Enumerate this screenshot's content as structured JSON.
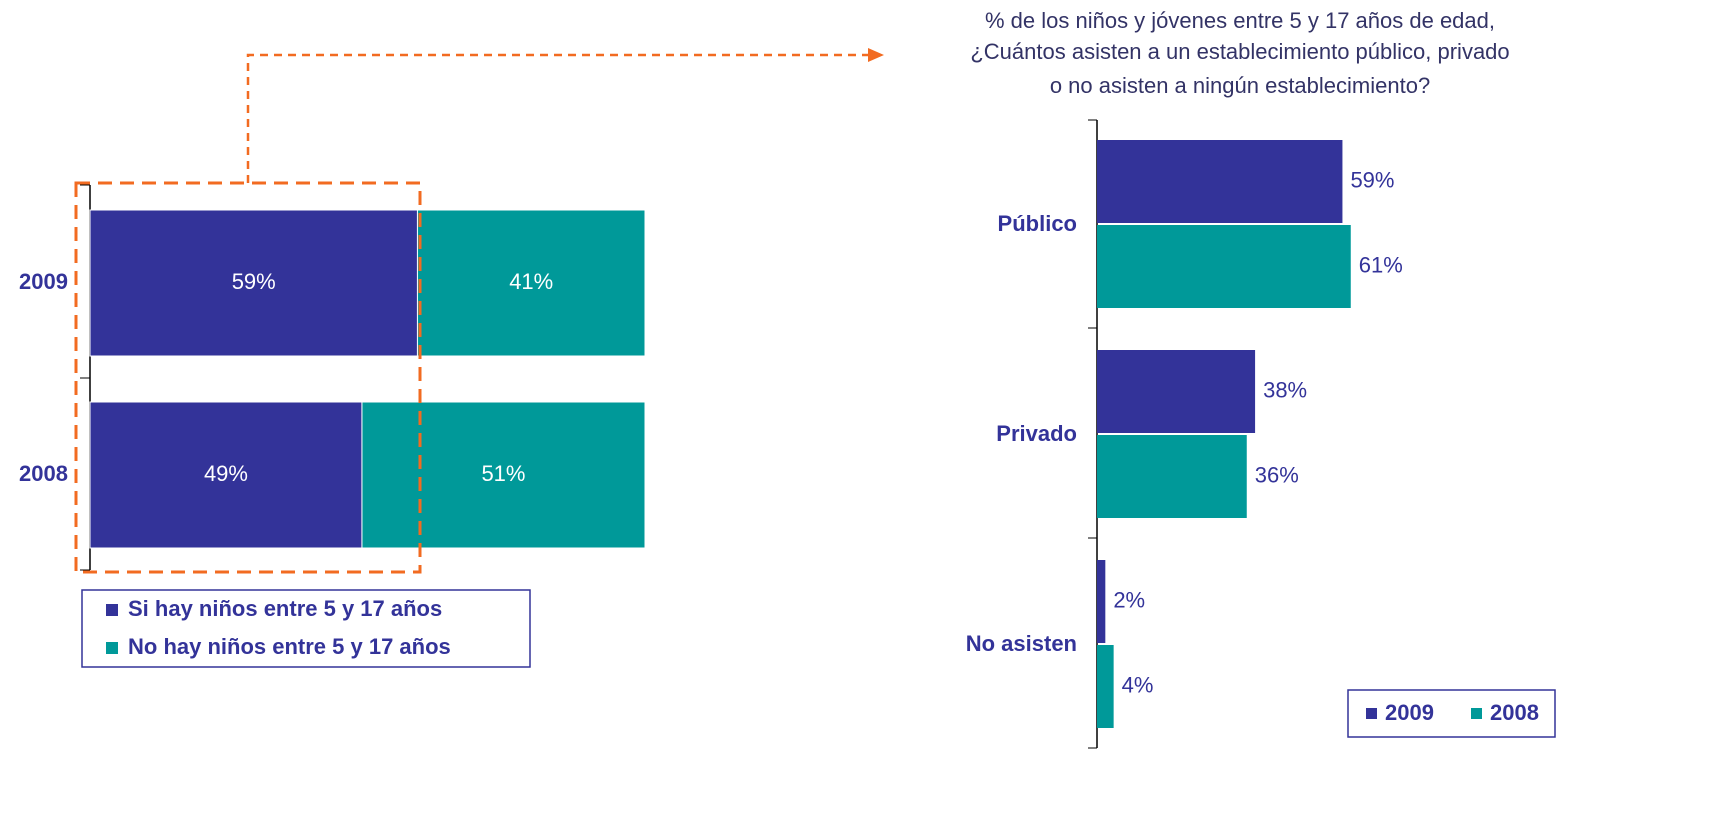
{
  "chart_data": [
    {
      "type": "stacked-bar",
      "categories": [
        "2009",
        "2008"
      ],
      "series": [
        {
          "name": "Si hay niños entre 5 y 17 años",
          "color": "#333399",
          "values": [
            59,
            49
          ],
          "value_labels": [
            "59%",
            "49%"
          ]
        },
        {
          "name": "No hay niños entre 5 y 17 años",
          "color": "#009999",
          "values": [
            41,
            51
          ],
          "value_labels": [
            "41%",
            "51%"
          ]
        }
      ]
    },
    {
      "type": "grouped-bar",
      "title": "% de los niños y jóvenes entre 5 y 17 años de edad,",
      "subtitle": [
        "¿Cuántos asisten a un establecimiento público, privado",
        "o no asisten a ningún establecimiento?"
      ],
      "categories": [
        "Público",
        "Privado",
        "No asisten"
      ],
      "series": [
        {
          "name": "2009",
          "color": "#333399",
          "values": [
            59,
            38,
            2
          ],
          "value_labels": [
            "59%",
            "38%",
            "2%"
          ]
        },
        {
          "name": "2008",
          "color": "#009999",
          "values": [
            61,
            36,
            4
          ],
          "value_labels": [
            "61%",
            "36%",
            "4%"
          ]
        }
      ]
    }
  ]
}
